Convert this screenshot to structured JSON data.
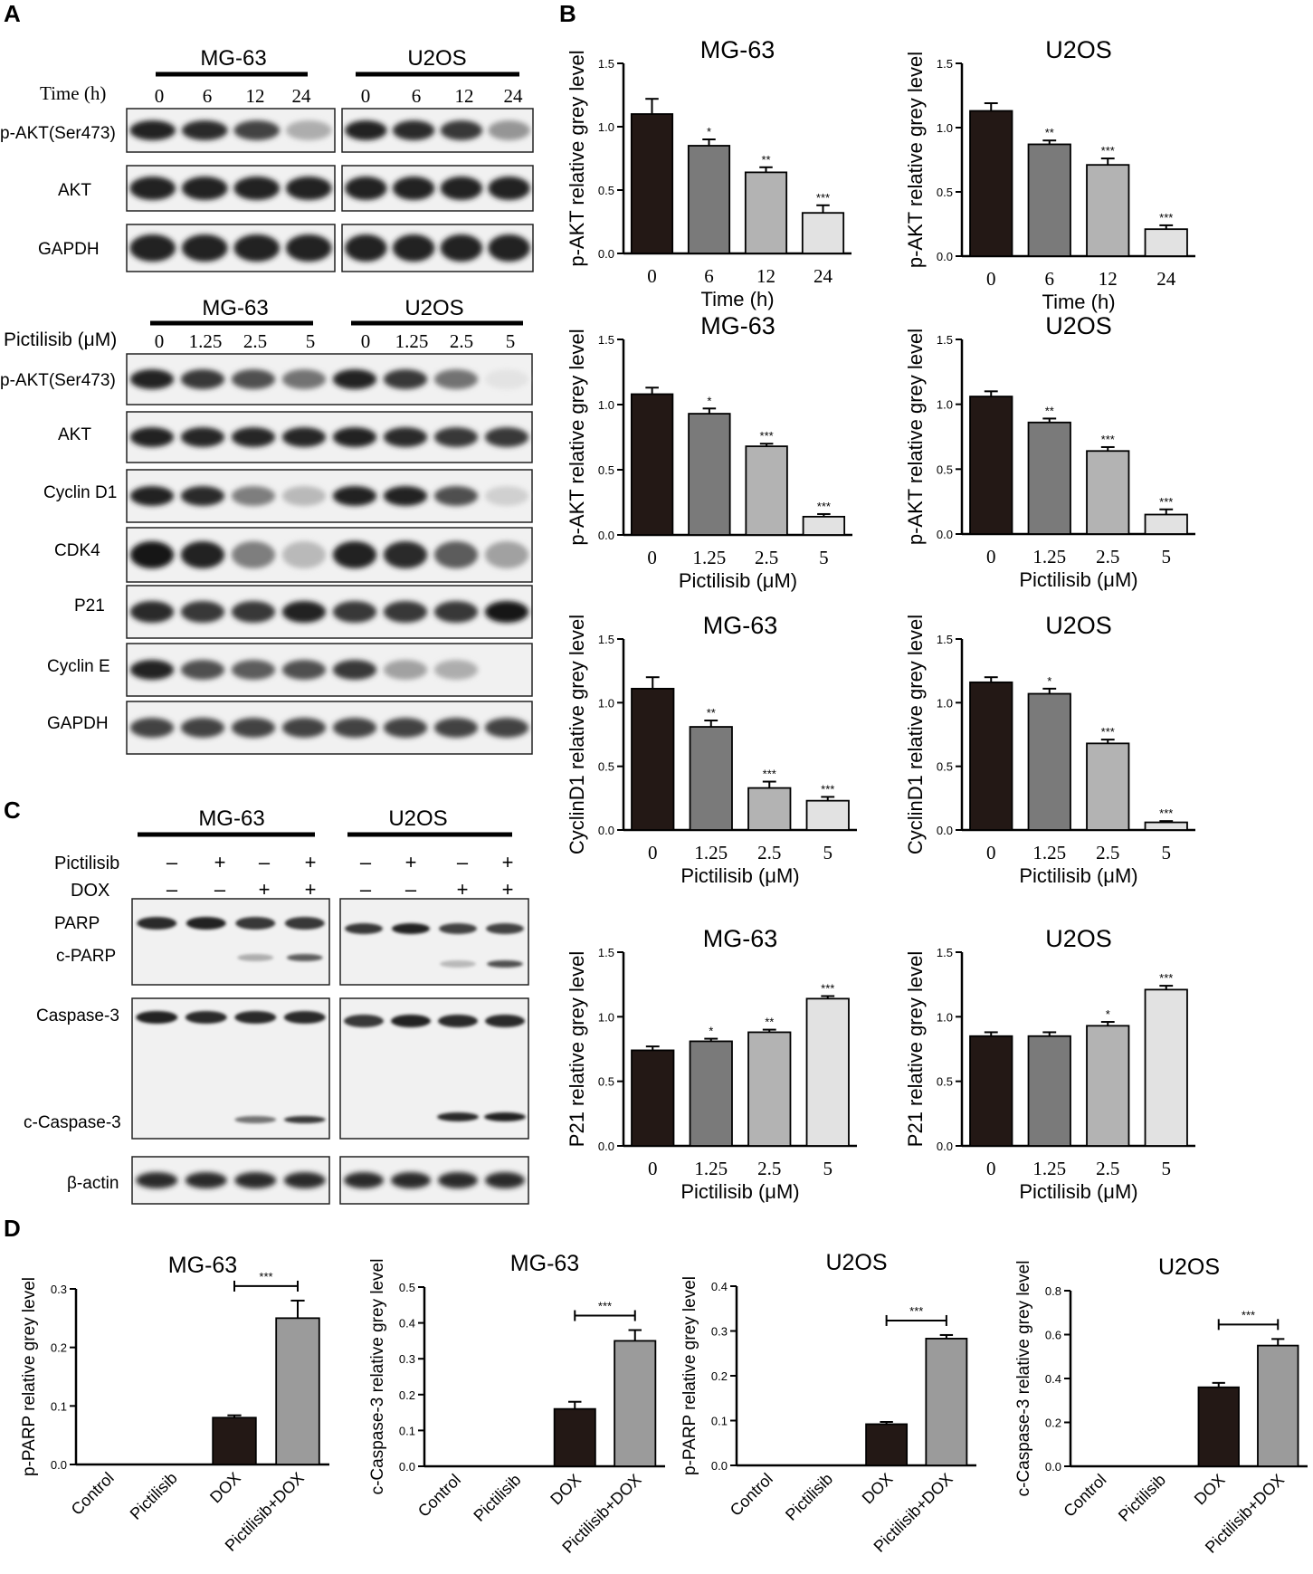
{
  "panels": {
    "A": "A",
    "B": "B",
    "C": "C",
    "D": "D"
  },
  "blots": {
    "A1": {
      "cell_lines": [
        "MG-63",
        "U2OS"
      ],
      "condition_label": "Time (h)",
      "conditions": [
        "0",
        "6",
        "12",
        "24"
      ],
      "rows": [
        "p-AKT(Ser473)",
        "AKT",
        "GAPDH"
      ]
    },
    "A2": {
      "cell_lines": [
        "MG-63",
        "U2OS"
      ],
      "condition_label": "Pictilisib (μM)",
      "conditions": [
        "0",
        "1.25",
        "2.5",
        "5"
      ],
      "rows": [
        "p-AKT(Ser473)",
        "AKT",
        "Cyclin D1",
        "CDK4",
        "P21",
        "Cyclin E",
        "GAPDH"
      ]
    },
    "C": {
      "cell_lines": [
        "MG-63",
        "U2OS"
      ],
      "treatments": [
        {
          "label": "Pictilisib",
          "signs": [
            "–",
            "+",
            "–",
            "+"
          ]
        },
        {
          "label": "DOX",
          "signs": [
            "–",
            "–",
            "+",
            "+"
          ]
        }
      ],
      "rows": [
        "PARP",
        "c-PARP",
        "Caspase-3",
        "c-Caspase-3",
        "β-actin"
      ]
    }
  },
  "chart_data": [
    {
      "id": "B1",
      "type": "bar",
      "title": "MG-63",
      "xlabel": "Time (h)",
      "ylabel": "p-AKT relative grey level",
      "categories": [
        "0",
        "6",
        "12",
        "24"
      ],
      "values": [
        1.1,
        0.85,
        0.64,
        0.32
      ],
      "errors": [
        0.12,
        0.05,
        0.04,
        0.06
      ],
      "significance": [
        "",
        "*",
        "**",
        "***"
      ],
      "ylim": [
        0,
        1.5
      ],
      "yticks": [
        "0.0",
        "0.5",
        "1.0",
        "1.5"
      ],
      "colors": [
        "#231815",
        "#7a7a7a",
        "#b3b3b3",
        "#e2e2e2"
      ]
    },
    {
      "id": "B2",
      "type": "bar",
      "title": "U2OS",
      "xlabel": "Time (h)",
      "ylabel": "p-AKT relative grey level",
      "categories": [
        "0",
        "6",
        "12",
        "24"
      ],
      "values": [
        1.13,
        0.87,
        0.71,
        0.21
      ],
      "errors": [
        0.06,
        0.03,
        0.05,
        0.03
      ],
      "significance": [
        "",
        "**",
        "***",
        "***"
      ],
      "ylim": [
        0,
        1.5
      ],
      "yticks": [
        "0.0",
        "0.5",
        "1.0",
        "1.5"
      ],
      "colors": [
        "#231815",
        "#7a7a7a",
        "#b3b3b3",
        "#e2e2e2"
      ]
    },
    {
      "id": "B3",
      "type": "bar",
      "title": "MG-63",
      "xlabel": "Pictilisib (μM)",
      "ylabel": "p-AKT relative grey level",
      "categories": [
        "0",
        "1.25",
        "2.5",
        "5"
      ],
      "values": [
        1.08,
        0.93,
        0.68,
        0.14
      ],
      "errors": [
        0.05,
        0.04,
        0.02,
        0.02
      ],
      "significance": [
        "",
        "*",
        "***",
        "***"
      ],
      "ylim": [
        0,
        1.5
      ],
      "yticks": [
        "0.0",
        "0.5",
        "1.0",
        "1.5"
      ],
      "colors": [
        "#231815",
        "#7a7a7a",
        "#b3b3b3",
        "#e2e2e2"
      ]
    },
    {
      "id": "B4",
      "type": "bar",
      "title": "U2OS",
      "xlabel": "Pictilisib (μM)",
      "ylabel": "p-AKT relative grey level",
      "categories": [
        "0",
        "1.25",
        "2.5",
        "5"
      ],
      "values": [
        1.06,
        0.86,
        0.64,
        0.15
      ],
      "errors": [
        0.04,
        0.03,
        0.03,
        0.04
      ],
      "significance": [
        "",
        "**",
        "***",
        "***"
      ],
      "ylim": [
        0,
        1.5
      ],
      "yticks": [
        "0.0",
        "0.5",
        "1.0",
        "1.5"
      ],
      "colors": [
        "#231815",
        "#7a7a7a",
        "#b3b3b3",
        "#e2e2e2"
      ]
    },
    {
      "id": "B5",
      "type": "bar",
      "title": "MG-63",
      "xlabel": "Pictilisib (μM)",
      "ylabel": "CyclinD1 relative grey level",
      "categories": [
        "0",
        "1.25",
        "2.5",
        "5"
      ],
      "values": [
        1.11,
        0.81,
        0.33,
        0.23
      ],
      "errors": [
        0.09,
        0.05,
        0.05,
        0.03
      ],
      "significance": [
        "",
        "**",
        "***",
        "***"
      ],
      "ylim": [
        0,
        1.5
      ],
      "yticks": [
        "0.0",
        "0.5",
        "1.0",
        "1.5"
      ],
      "colors": [
        "#231815",
        "#7a7a7a",
        "#b3b3b3",
        "#e2e2e2"
      ]
    },
    {
      "id": "B6",
      "type": "bar",
      "title": "U2OS",
      "xlabel": "Pictilisib (μM)",
      "ylabel": "CyclinD1 relative grey level",
      "categories": [
        "0",
        "1.25",
        "2.5",
        "5"
      ],
      "values": [
        1.16,
        1.07,
        0.68,
        0.06
      ],
      "errors": [
        0.04,
        0.04,
        0.03,
        0.01
      ],
      "significance": [
        "",
        "*",
        "***",
        "***"
      ],
      "ylim": [
        0,
        1.5
      ],
      "yticks": [
        "0.0",
        "0.5",
        "1.0",
        "1.5"
      ],
      "colors": [
        "#231815",
        "#7a7a7a",
        "#b3b3b3",
        "#e2e2e2"
      ]
    },
    {
      "id": "B7",
      "type": "bar",
      "title": "MG-63",
      "xlabel": "Pictilisib (μM)",
      "ylabel": "P21 relative grey level",
      "categories": [
        "0",
        "1.25",
        "2.5",
        "5"
      ],
      "values": [
        0.74,
        0.81,
        0.88,
        1.14
      ],
      "errors": [
        0.03,
        0.02,
        0.02,
        0.02
      ],
      "significance": [
        "",
        "*",
        "**",
        "***"
      ],
      "ylim": [
        0,
        1.5
      ],
      "yticks": [
        "0.0",
        "0.5",
        "1.0",
        "1.5"
      ],
      "colors": [
        "#231815",
        "#7a7a7a",
        "#b3b3b3",
        "#e2e2e2"
      ]
    },
    {
      "id": "B8",
      "type": "bar",
      "title": "U2OS",
      "xlabel": "Pictilisib (μM)",
      "ylabel": "P21 relative grey level",
      "categories": [
        "0",
        "1.25",
        "2.5",
        "5"
      ],
      "values": [
        0.85,
        0.85,
        0.93,
        1.21
      ],
      "errors": [
        0.03,
        0.03,
        0.03,
        0.03
      ],
      "significance": [
        "",
        "",
        "*",
        "***"
      ],
      "ylim": [
        0,
        1.5
      ],
      "yticks": [
        "0.0",
        "0.5",
        "1.0",
        "1.5"
      ],
      "colors": [
        "#231815",
        "#7a7a7a",
        "#b3b3b3",
        "#e2e2e2"
      ]
    },
    {
      "id": "D1",
      "type": "bar",
      "title": "MG-63",
      "xlabel": "",
      "ylabel": "p-PARP relative grey level",
      "categories": [
        "Control",
        "Pictilisib",
        "DOX",
        "Pictilisib+DOX"
      ],
      "values": [
        0,
        0,
        0.08,
        0.25
      ],
      "errors": [
        0,
        0,
        0.004,
        0.03
      ],
      "bracket": "***",
      "ylim": [
        0,
        0.3
      ],
      "yticks": [
        "0.0",
        "0.1",
        "0.2",
        "0.3"
      ],
      "colors": [
        "#231815",
        "#231815",
        "#231815",
        "#9b9b9b"
      ]
    },
    {
      "id": "D2",
      "type": "bar",
      "title": "MG-63",
      "xlabel": "",
      "ylabel": "c-Caspase-3 relative grey level",
      "categories": [
        "Control",
        "Pictilisib",
        "DOX",
        "Pictilisib+DOX"
      ],
      "values": [
        0,
        0,
        0.16,
        0.35
      ],
      "errors": [
        0,
        0,
        0.02,
        0.03
      ],
      "bracket": "***",
      "ylim": [
        0,
        0.5
      ],
      "yticks": [
        "0.0",
        "0.1",
        "0.2",
        "0.3",
        "0.4",
        "0.5"
      ],
      "colors": [
        "#231815",
        "#231815",
        "#231815",
        "#9b9b9b"
      ]
    },
    {
      "id": "D3",
      "type": "bar",
      "title": "U2OS",
      "xlabel": "",
      "ylabel": "p-PARP relative grey level",
      "categories": [
        "Control",
        "Pictilisib",
        "DOX",
        "Pictilisib+DOX"
      ],
      "values": [
        0,
        0,
        0.092,
        0.283
      ],
      "errors": [
        0,
        0,
        0.005,
        0.008
      ],
      "bracket": "***",
      "ylim": [
        0,
        0.4
      ],
      "yticks": [
        "0.0",
        "0.1",
        "0.2",
        "0.3",
        "0.4"
      ],
      "colors": [
        "#231815",
        "#231815",
        "#231815",
        "#9b9b9b"
      ]
    },
    {
      "id": "D4",
      "type": "bar",
      "title": "U2OS",
      "xlabel": "",
      "ylabel": "c-Caspase-3 relative grey level",
      "categories": [
        "Control",
        "Pictilisib",
        "DOX",
        "Pictilisib+DOX"
      ],
      "values": [
        0,
        0,
        0.36,
        0.55
      ],
      "errors": [
        0,
        0,
        0.02,
        0.03
      ],
      "bracket": "***",
      "ylim": [
        0,
        0.8
      ],
      "yticks": [
        "0.0",
        "0.2",
        "0.4",
        "0.6",
        "0.8"
      ],
      "colors": [
        "#231815",
        "#231815",
        "#231815",
        "#9b9b9b"
      ]
    }
  ]
}
